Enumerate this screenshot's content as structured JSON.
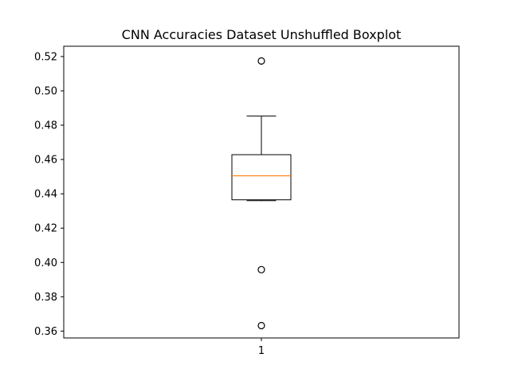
{
  "chart_data": {
    "type": "box",
    "title": "CNN Accuracies Dataset Unshuffled Boxplot",
    "xlabel": "",
    "ylabel": "",
    "categories": [
      "1"
    ],
    "ylim": [
      0.356,
      0.526
    ],
    "yticks": [
      0.36,
      0.38,
      0.4,
      0.42,
      0.44,
      0.46,
      0.48,
      0.5,
      0.52
    ],
    "ytick_labels": [
      "0.36",
      "0.38",
      "0.40",
      "0.42",
      "0.44",
      "0.46",
      "0.48",
      "0.50",
      "0.52"
    ],
    "boxes": [
      {
        "category": "1",
        "whisker_low": 0.436,
        "q1": 0.4365,
        "median": 0.4505,
        "q3": 0.4628,
        "whisker_high": 0.4853,
        "outliers": [
          0.5174,
          0.3958,
          0.3632
        ]
      }
    ],
    "grid": false,
    "colors": {
      "box": "#000000",
      "median": "#ff7f0e",
      "outlier": "#000000"
    }
  }
}
